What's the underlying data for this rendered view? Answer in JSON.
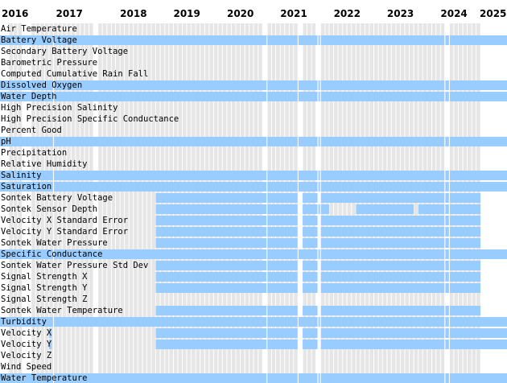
{
  "chart_data": {
    "type": "timeline",
    "title": "",
    "x_axis": {
      "type": "date",
      "range": [
        "2016-01-01",
        "2025-06-30"
      ],
      "tick_labels": [
        "2016",
        "2017",
        "2018",
        "2019",
        "2020",
        "2021",
        "2022",
        "2023",
        "2024",
        "2025"
      ],
      "label_positions": [
        "start",
        "start",
        "middle",
        "middle",
        "middle",
        "middle",
        "middle",
        "middle",
        "middle",
        "start"
      ]
    },
    "background_coverage": {
      "description": "light gray month cells where a parameter record exists",
      "periods": [
        [
          "2016-03-01",
          "2016-06-01"
        ],
        [
          "2016-08-01",
          "2024-12-31"
        ]
      ],
      "gaps_months": [
        "2017-10",
        "2020-12",
        "2021-08",
        "2021-12",
        "2024-05"
      ]
    },
    "colors": {
      "bar": "#99ccff",
      "background_cell": "#e6e6e6",
      "cell_divider": "#ffffff",
      "text": "#000000"
    },
    "rows": [
      {
        "label": "Air Temperature",
        "highlight": false,
        "periods": []
      },
      {
        "label": "Battery Voltage",
        "highlight": true,
        "periods": [
          [
            "2016-01-01",
            "2020-12-31"
          ],
          [
            "2021-01-01",
            "2021-08-01"
          ],
          [
            "2021-09-01",
            "2021-12-15"
          ],
          [
            "2022-01-01",
            "2024-05-01"
          ],
          [
            "2024-06-01",
            "2025-06-30"
          ]
        ]
      },
      {
        "label": "Secondary Battery Voltage",
        "highlight": false,
        "periods": []
      },
      {
        "label": "Barometric Pressure",
        "highlight": false,
        "periods": []
      },
      {
        "label": "Computed Cumulative Rain Fall",
        "highlight": false,
        "periods": []
      },
      {
        "label": "Dissolved Oxygen",
        "highlight": true,
        "periods": [
          [
            "2016-01-01",
            "2020-12-31"
          ],
          [
            "2021-01-01",
            "2021-08-01"
          ],
          [
            "2021-09-01",
            "2021-12-15"
          ],
          [
            "2022-01-01",
            "2024-05-01"
          ],
          [
            "2024-06-01",
            "2025-06-30"
          ]
        ]
      },
      {
        "label": "Water Depth",
        "highlight": true,
        "periods": [
          [
            "2016-01-01",
            "2016-11-01"
          ],
          [
            "2016-12-01",
            "2020-12-31"
          ],
          [
            "2021-01-01",
            "2021-08-01"
          ],
          [
            "2021-09-01",
            "2021-12-15"
          ],
          [
            "2022-01-01",
            "2024-05-01"
          ],
          [
            "2024-06-01",
            "2025-06-30"
          ]
        ]
      },
      {
        "label": "High Precision Salinity",
        "highlight": false,
        "periods": []
      },
      {
        "label": "High Precision Specific Conductance",
        "highlight": false,
        "periods": []
      },
      {
        "label": "Percent Good",
        "highlight": false,
        "periods": []
      },
      {
        "label": "pH",
        "highlight": true,
        "periods": [
          [
            "2016-01-01",
            "2020-12-31"
          ],
          [
            "2021-01-01",
            "2021-08-01"
          ],
          [
            "2021-09-01",
            "2021-12-15"
          ],
          [
            "2022-01-01",
            "2024-05-01"
          ],
          [
            "2024-06-01",
            "2025-06-30"
          ]
        ]
      },
      {
        "label": "Precipitation",
        "highlight": false,
        "periods": []
      },
      {
        "label": "Relative Humidity",
        "highlight": false,
        "periods": []
      },
      {
        "label": "Salinity",
        "highlight": true,
        "periods": [
          [
            "2016-01-01",
            "2016-11-01"
          ],
          [
            "2016-12-01",
            "2020-12-31"
          ],
          [
            "2021-01-01",
            "2021-08-01"
          ],
          [
            "2021-09-01",
            "2021-12-15"
          ],
          [
            "2022-01-01",
            "2024-05-01"
          ],
          [
            "2024-06-01",
            "2025-06-30"
          ]
        ]
      },
      {
        "label": "Saturation",
        "highlight": true,
        "periods": [
          [
            "2016-01-01",
            "2016-11-01"
          ],
          [
            "2016-12-01",
            "2020-12-31"
          ],
          [
            "2021-01-01",
            "2021-08-01"
          ],
          [
            "2021-09-01",
            "2021-12-15"
          ],
          [
            "2022-01-01",
            "2024-05-01"
          ],
          [
            "2024-06-01",
            "2025-06-30"
          ]
        ]
      },
      {
        "label": "Sontek Battery Voltage",
        "highlight": false,
        "periods": [
          [
            "2018-12-01",
            "2020-12-31"
          ],
          [
            "2021-01-01",
            "2021-08-01"
          ],
          [
            "2021-09-01",
            "2021-12-15"
          ],
          [
            "2022-01-01",
            "2024-12-31"
          ]
        ]
      },
      {
        "label": "Sontek Sensor Depth",
        "highlight": false,
        "periods": [
          [
            "2018-12-01",
            "2020-12-31"
          ],
          [
            "2021-01-01",
            "2021-08-01"
          ],
          [
            "2021-09-01",
            "2022-03-01"
          ],
          [
            "2022-09-01",
            "2023-10-01"
          ],
          [
            "2023-11-01",
            "2024-12-31"
          ]
        ]
      },
      {
        "label": "Velocity X Standard Error",
        "highlight": false,
        "periods": [
          [
            "2018-12-01",
            "2020-12-31"
          ],
          [
            "2021-01-01",
            "2021-08-01"
          ],
          [
            "2021-09-01",
            "2021-12-15"
          ],
          [
            "2022-01-01",
            "2024-12-31"
          ]
        ]
      },
      {
        "label": "Velocity Y Standard Error",
        "highlight": false,
        "periods": [
          [
            "2018-12-01",
            "2020-12-31"
          ],
          [
            "2021-01-01",
            "2021-08-01"
          ],
          [
            "2021-09-01",
            "2021-12-15"
          ],
          [
            "2022-01-01",
            "2024-12-31"
          ]
        ]
      },
      {
        "label": "Sontek Water Pressure",
        "highlight": false,
        "periods": [
          [
            "2018-12-01",
            "2020-12-31"
          ],
          [
            "2021-01-01",
            "2021-08-01"
          ],
          [
            "2021-09-01",
            "2021-12-15"
          ],
          [
            "2022-01-01",
            "2024-12-31"
          ]
        ]
      },
      {
        "label": "Specific Conductance",
        "highlight": true,
        "periods": [
          [
            "2016-01-01",
            "2016-11-01"
          ],
          [
            "2016-12-01",
            "2020-12-31"
          ],
          [
            "2021-01-01",
            "2021-08-01"
          ],
          [
            "2021-09-01",
            "2021-12-15"
          ],
          [
            "2022-01-01",
            "2024-05-01"
          ],
          [
            "2024-06-01",
            "2025-06-30"
          ]
        ]
      },
      {
        "label": "Sontek Water Pressure Std Dev",
        "highlight": false,
        "periods": [
          [
            "2018-12-01",
            "2020-12-31"
          ],
          [
            "2021-01-01",
            "2021-08-01"
          ],
          [
            "2021-09-01",
            "2021-12-15"
          ],
          [
            "2022-01-01",
            "2024-12-31"
          ]
        ]
      },
      {
        "label": "Signal Strength X",
        "highlight": false,
        "periods": [
          [
            "2018-12-01",
            "2020-12-31"
          ],
          [
            "2021-01-01",
            "2021-08-01"
          ],
          [
            "2021-09-01",
            "2021-12-15"
          ],
          [
            "2022-01-01",
            "2024-12-31"
          ]
        ]
      },
      {
        "label": "Signal Strength Y",
        "highlight": false,
        "periods": [
          [
            "2018-12-01",
            "2020-12-31"
          ],
          [
            "2021-01-01",
            "2021-08-01"
          ],
          [
            "2021-09-01",
            "2021-12-15"
          ],
          [
            "2022-01-01",
            "2024-12-31"
          ]
        ]
      },
      {
        "label": "Signal Strength Z",
        "highlight": false,
        "periods": []
      },
      {
        "label": "Sontek Water Temperature",
        "highlight": false,
        "periods": [
          [
            "2018-12-01",
            "2020-12-31"
          ],
          [
            "2021-01-01",
            "2021-08-01"
          ],
          [
            "2021-09-01",
            "2021-12-15"
          ],
          [
            "2022-01-01",
            "2024-12-31"
          ]
        ]
      },
      {
        "label": "Turbidity",
        "highlight": true,
        "periods": [
          [
            "2016-01-01",
            "2020-12-31"
          ],
          [
            "2021-01-01",
            "2021-08-01"
          ],
          [
            "2021-09-01",
            "2021-12-15"
          ],
          [
            "2022-01-01",
            "2024-05-01"
          ],
          [
            "2024-06-01",
            "2025-06-30"
          ]
        ]
      },
      {
        "label": "Velocity X",
        "highlight": false,
        "periods": [
          [
            "2016-12-01",
            "2016-12-20"
          ],
          [
            "2018-12-01",
            "2020-12-31"
          ],
          [
            "2021-01-01",
            "2021-08-01"
          ],
          [
            "2021-09-01",
            "2021-12-15"
          ],
          [
            "2022-01-01",
            "2025-06-30"
          ]
        ]
      },
      {
        "label": "Velocity Y",
        "highlight": false,
        "periods": [
          [
            "2016-12-01",
            "2016-12-20"
          ],
          [
            "2018-12-01",
            "2020-12-31"
          ],
          [
            "2021-01-01",
            "2021-08-01"
          ],
          [
            "2021-09-01",
            "2021-12-15"
          ],
          [
            "2022-01-01",
            "2025-06-30"
          ]
        ]
      },
      {
        "label": "Velocity Z",
        "highlight": false,
        "periods": []
      },
      {
        "label": "Wind Speed",
        "highlight": false,
        "periods": []
      },
      {
        "label": "Water Temperature",
        "highlight": true,
        "periods": [
          [
            "2016-01-01",
            "2020-12-31"
          ],
          [
            "2021-01-01",
            "2021-08-01"
          ],
          [
            "2021-09-01",
            "2021-12-15"
          ],
          [
            "2022-01-01",
            "2024-05-01"
          ],
          [
            "2024-06-01",
            "2025-06-30"
          ]
        ]
      }
    ]
  }
}
